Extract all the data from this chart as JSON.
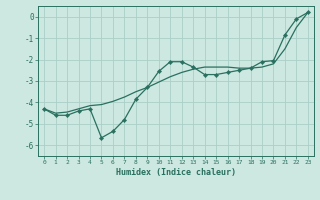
{
  "xlabel": "Humidex (Indice chaleur)",
  "bg_color": "#cce8e0",
  "grid_color": "#aacfc8",
  "line_color": "#2a7060",
  "xlim": [
    -0.5,
    23.5
  ],
  "ylim": [
    -6.5,
    0.5
  ],
  "yticks": [
    0,
    -1,
    -2,
    -3,
    -4,
    -5,
    -6
  ],
  "xticks": [
    0,
    1,
    2,
    3,
    4,
    5,
    6,
    7,
    8,
    9,
    10,
    11,
    12,
    13,
    14,
    15,
    16,
    17,
    18,
    19,
    20,
    21,
    22,
    23
  ],
  "jagged_x": [
    0,
    1,
    2,
    3,
    4,
    5,
    6,
    7,
    8,
    9,
    10,
    11,
    12,
    13,
    14,
    15,
    16,
    17,
    18,
    19,
    20,
    21,
    22,
    23
  ],
  "jagged_y": [
    -4.3,
    -4.6,
    -4.6,
    -4.4,
    -4.3,
    -5.65,
    -5.35,
    -4.8,
    -3.85,
    -3.3,
    -2.55,
    -2.1,
    -2.1,
    -2.35,
    -2.7,
    -2.7,
    -2.6,
    -2.5,
    -2.4,
    -2.1,
    -2.05,
    -0.85,
    -0.1,
    0.2
  ],
  "smooth_x": [
    0,
    1,
    2,
    3,
    4,
    5,
    6,
    7,
    8,
    9,
    10,
    11,
    12,
    13,
    14,
    15,
    16,
    17,
    18,
    19,
    20,
    21,
    22,
    23
  ],
  "smooth_y": [
    -4.3,
    -4.5,
    -4.45,
    -4.3,
    -4.15,
    -4.1,
    -3.95,
    -3.75,
    -3.5,
    -3.3,
    -3.05,
    -2.8,
    -2.6,
    -2.45,
    -2.35,
    -2.35,
    -2.35,
    -2.4,
    -2.4,
    -2.35,
    -2.2,
    -1.5,
    -0.5,
    0.2
  ]
}
